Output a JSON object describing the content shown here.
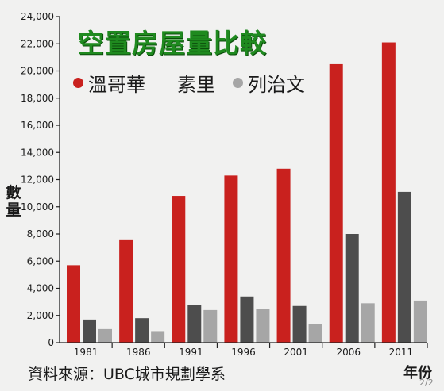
{
  "chart_data": {
    "type": "bar",
    "title": "空置房屋量比較",
    "xlabel": "年份",
    "ylabel": "數量",
    "ylim": [
      0,
      24000
    ],
    "yticks": [
      0,
      2000,
      4000,
      6000,
      8000,
      10000,
      12000,
      14000,
      16000,
      18000,
      20000,
      22000,
      24000
    ],
    "categories": [
      "1981",
      "1986",
      "1991",
      "1996",
      "2001",
      "2006",
      "2011"
    ],
    "series": [
      {
        "name": "溫哥華",
        "color": "#c9211e",
        "values": [
          5700,
          7600,
          10800,
          12300,
          12800,
          20500,
          22100
        ]
      },
      {
        "name": "素里",
        "color": "#4d4d4d",
        "values": [
          1700,
          1800,
          2800,
          3400,
          2700,
          8000,
          11100
        ]
      },
      {
        "name": "列治文",
        "color": "#a6a6a6",
        "values": [
          1000,
          850,
          2400,
          2500,
          1400,
          2900,
          3100
        ]
      }
    ],
    "legend_position": "top-left",
    "grid": false
  },
  "source_text": "資料來源：UBC城市規劃學系",
  "page_indicator": "2/2"
}
